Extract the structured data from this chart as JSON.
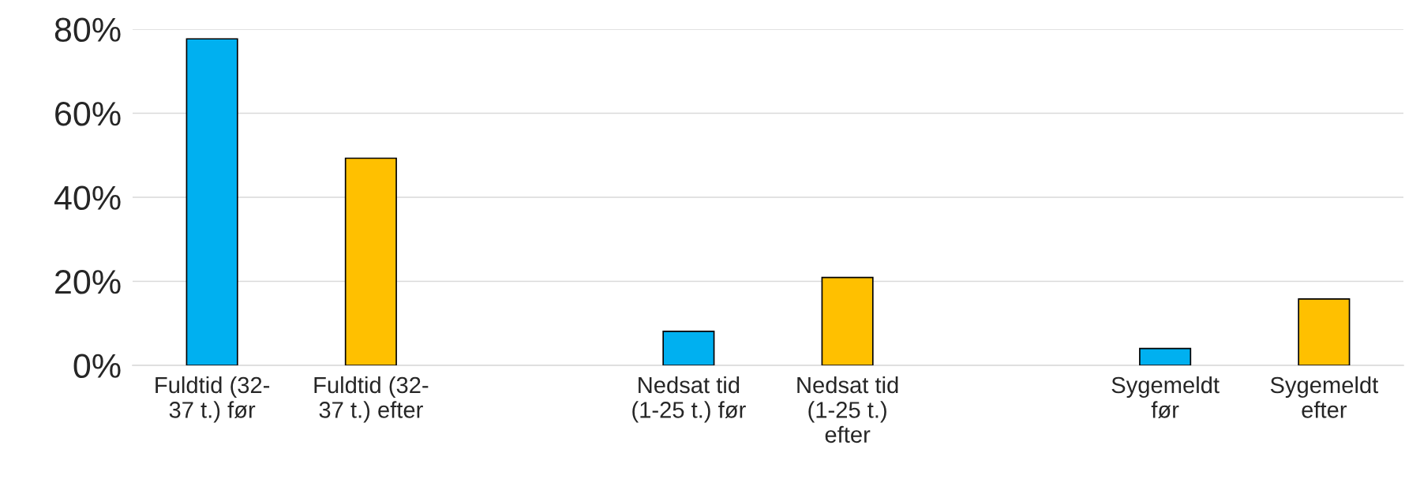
{
  "chart_data": {
    "type": "bar",
    "categories": [
      "Fuldtid (32-\n37 t.) før",
      "Fuldtid (32-\n37 t.) efter",
      null,
      "Nedsat tid\n(1-25 t.) før",
      "Nedsat tid\n(1-25 t.)\nefter",
      null,
      "Sygemeldt\nfør",
      "Sygemeldt\nefter"
    ],
    "values": [
      77.7,
      49.3,
      null,
      8.1,
      20.9,
      null,
      4.0,
      15.8
    ],
    "colors": [
      "#00b0f0",
      "#ffc000",
      null,
      "#00b0f0",
      "#ffc000",
      null,
      "#00b0f0",
      "#ffc000"
    ],
    "ylim": [
      0,
      80
    ],
    "yticks": [
      {
        "value": 0,
        "label": "0%"
      },
      {
        "value": 20,
        "label": "20%"
      },
      {
        "value": 40,
        "label": "40%"
      },
      {
        "value": 60,
        "label": "60%"
      },
      {
        "value": 80,
        "label": "80%"
      }
    ],
    "grid": "y",
    "legend": false
  }
}
